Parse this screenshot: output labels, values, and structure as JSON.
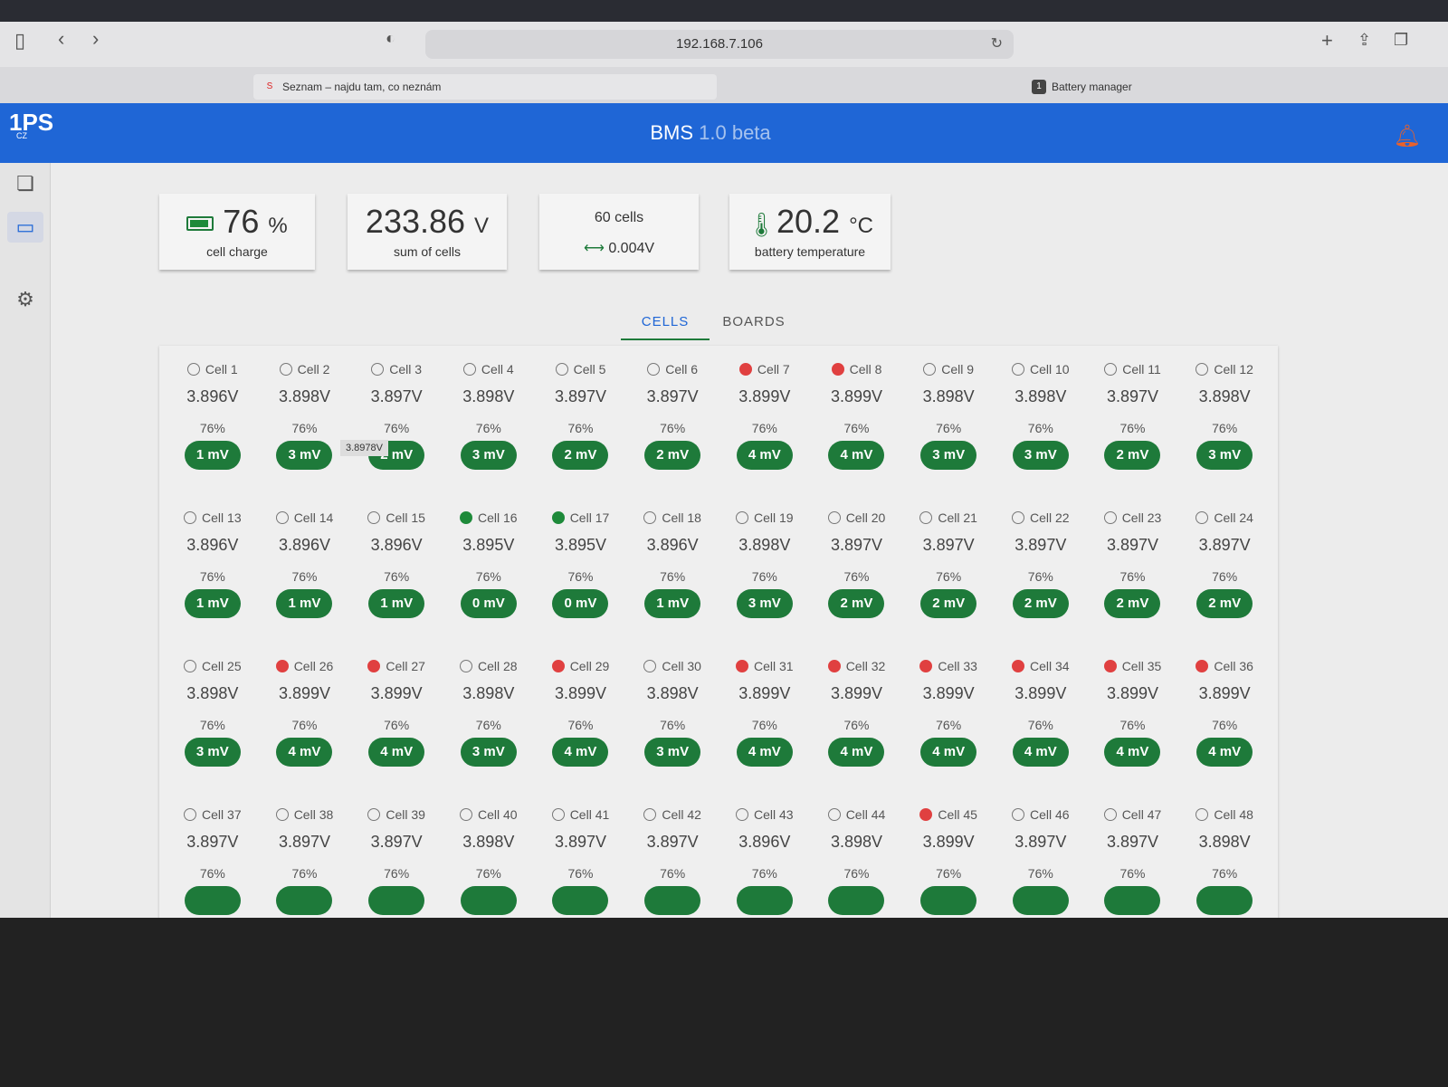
{
  "browser": {
    "url": "192.168.7.106",
    "tabs": [
      {
        "label": "Seznam – najdu tam, co neznám",
        "favicon": "S"
      },
      {
        "label": "Battery manager",
        "favicon": "1"
      }
    ]
  },
  "app": {
    "logo": "1PS",
    "logo_sub": "CZ",
    "title": "BMS",
    "version": "1.0 beta"
  },
  "stats": {
    "charge_value": "76",
    "charge_unit": "%",
    "charge_label": "cell charge",
    "sum_value": "233.86",
    "sum_unit": "V",
    "sum_label": "sum of cells",
    "cells_count": "60 cells",
    "cells_delta": "0.004V",
    "temp_value": "20.2",
    "temp_unit": "°C",
    "temp_label": "battery temperature"
  },
  "tabs": [
    "CELLS",
    "BOARDS"
  ],
  "tooltip": "3.8978V",
  "colors": {
    "accent": "#1f66d6",
    "pill": "#1e7a3a",
    "red": "#e04040"
  },
  "cells": [
    {
      "name": "Cell 1",
      "v": "3.896V",
      "p": "76%",
      "d": "1 mV",
      "s": "none"
    },
    {
      "name": "Cell 2",
      "v": "3.898V",
      "p": "76%",
      "d": "3 mV",
      "s": "none"
    },
    {
      "name": "Cell 3",
      "v": "3.897V",
      "p": "76%",
      "d": "2 mV",
      "s": "none"
    },
    {
      "name": "Cell 4",
      "v": "3.898V",
      "p": "76%",
      "d": "3 mV",
      "s": "none"
    },
    {
      "name": "Cell 5",
      "v": "3.897V",
      "p": "76%",
      "d": "2 mV",
      "s": "none"
    },
    {
      "name": "Cell 6",
      "v": "3.897V",
      "p": "76%",
      "d": "2 mV",
      "s": "none"
    },
    {
      "name": "Cell 7",
      "v": "3.899V",
      "p": "76%",
      "d": "4 mV",
      "s": "red"
    },
    {
      "name": "Cell 8",
      "v": "3.899V",
      "p": "76%",
      "d": "4 mV",
      "s": "red"
    },
    {
      "name": "Cell 9",
      "v": "3.898V",
      "p": "76%",
      "d": "3 mV",
      "s": "none"
    },
    {
      "name": "Cell 10",
      "v": "3.898V",
      "p": "76%",
      "d": "3 mV",
      "s": "none"
    },
    {
      "name": "Cell 11",
      "v": "3.897V",
      "p": "76%",
      "d": "2 mV",
      "s": "none"
    },
    {
      "name": "Cell 12",
      "v": "3.898V",
      "p": "76%",
      "d": "3 mV",
      "s": "none"
    },
    {
      "name": "Cell 13",
      "v": "3.896V",
      "p": "76%",
      "d": "1 mV",
      "s": "none"
    },
    {
      "name": "Cell 14",
      "v": "3.896V",
      "p": "76%",
      "d": "1 mV",
      "s": "none"
    },
    {
      "name": "Cell 15",
      "v": "3.896V",
      "p": "76%",
      "d": "1 mV",
      "s": "none"
    },
    {
      "name": "Cell 16",
      "v": "3.895V",
      "p": "76%",
      "d": "0 mV",
      "s": "green"
    },
    {
      "name": "Cell 17",
      "v": "3.895V",
      "p": "76%",
      "d": "0 mV",
      "s": "green"
    },
    {
      "name": "Cell 18",
      "v": "3.896V",
      "p": "76%",
      "d": "1 mV",
      "s": "none"
    },
    {
      "name": "Cell 19",
      "v": "3.898V",
      "p": "76%",
      "d": "3 mV",
      "s": "none"
    },
    {
      "name": "Cell 20",
      "v": "3.897V",
      "p": "76%",
      "d": "2 mV",
      "s": "none"
    },
    {
      "name": "Cell 21",
      "v": "3.897V",
      "p": "76%",
      "d": "2 mV",
      "s": "none"
    },
    {
      "name": "Cell 22",
      "v": "3.897V",
      "p": "76%",
      "d": "2 mV",
      "s": "none"
    },
    {
      "name": "Cell 23",
      "v": "3.897V",
      "p": "76%",
      "d": "2 mV",
      "s": "none"
    },
    {
      "name": "Cell 24",
      "v": "3.897V",
      "p": "76%",
      "d": "2 mV",
      "s": "none"
    },
    {
      "name": "Cell 25",
      "v": "3.898V",
      "p": "76%",
      "d": "3 mV",
      "s": "none"
    },
    {
      "name": "Cell 26",
      "v": "3.899V",
      "p": "76%",
      "d": "4 mV",
      "s": "red"
    },
    {
      "name": "Cell 27",
      "v": "3.899V",
      "p": "76%",
      "d": "4 mV",
      "s": "red"
    },
    {
      "name": "Cell 28",
      "v": "3.898V",
      "p": "76%",
      "d": "3 mV",
      "s": "none"
    },
    {
      "name": "Cell 29",
      "v": "3.899V",
      "p": "76%",
      "d": "4 mV",
      "s": "red"
    },
    {
      "name": "Cell 30",
      "v": "3.898V",
      "p": "76%",
      "d": "3 mV",
      "s": "none"
    },
    {
      "name": "Cell 31",
      "v": "3.899V",
      "p": "76%",
      "d": "4 mV",
      "s": "red"
    },
    {
      "name": "Cell 32",
      "v": "3.899V",
      "p": "76%",
      "d": "4 mV",
      "s": "red"
    },
    {
      "name": "Cell 33",
      "v": "3.899V",
      "p": "76%",
      "d": "4 mV",
      "s": "red"
    },
    {
      "name": "Cell 34",
      "v": "3.899V",
      "p": "76%",
      "d": "4 mV",
      "s": "red"
    },
    {
      "name": "Cell 35",
      "v": "3.899V",
      "p": "76%",
      "d": "4 mV",
      "s": "red"
    },
    {
      "name": "Cell 36",
      "v": "3.899V",
      "p": "76%",
      "d": "4 mV",
      "s": "red"
    },
    {
      "name": "Cell 37",
      "v": "3.897V",
      "p": "76%",
      "s": "none"
    },
    {
      "name": "Cell 38",
      "v": "3.897V",
      "p": "76%",
      "s": "none"
    },
    {
      "name": "Cell 39",
      "v": "3.897V",
      "p": "76%",
      "s": "none"
    },
    {
      "name": "Cell 40",
      "v": "3.898V",
      "p": "76%",
      "s": "none"
    },
    {
      "name": "Cell 41",
      "v": "3.897V",
      "p": "76%",
      "s": "none"
    },
    {
      "name": "Cell 42",
      "v": "3.897V",
      "p": "76%",
      "s": "none"
    },
    {
      "name": "Cell 43",
      "v": "3.896V",
      "p": "76%",
      "s": "none"
    },
    {
      "name": "Cell 44",
      "v": "3.898V",
      "p": "76%",
      "s": "none"
    },
    {
      "name": "Cell 45",
      "v": "3.899V",
      "p": "76%",
      "s": "red"
    },
    {
      "name": "Cell 46",
      "v": "3.897V",
      "p": "76%",
      "s": "none"
    },
    {
      "name": "Cell 47",
      "v": "3.897V",
      "p": "76%",
      "s": "none"
    },
    {
      "name": "Cell 48",
      "v": "3.898V",
      "p": "76%",
      "s": "none"
    }
  ]
}
